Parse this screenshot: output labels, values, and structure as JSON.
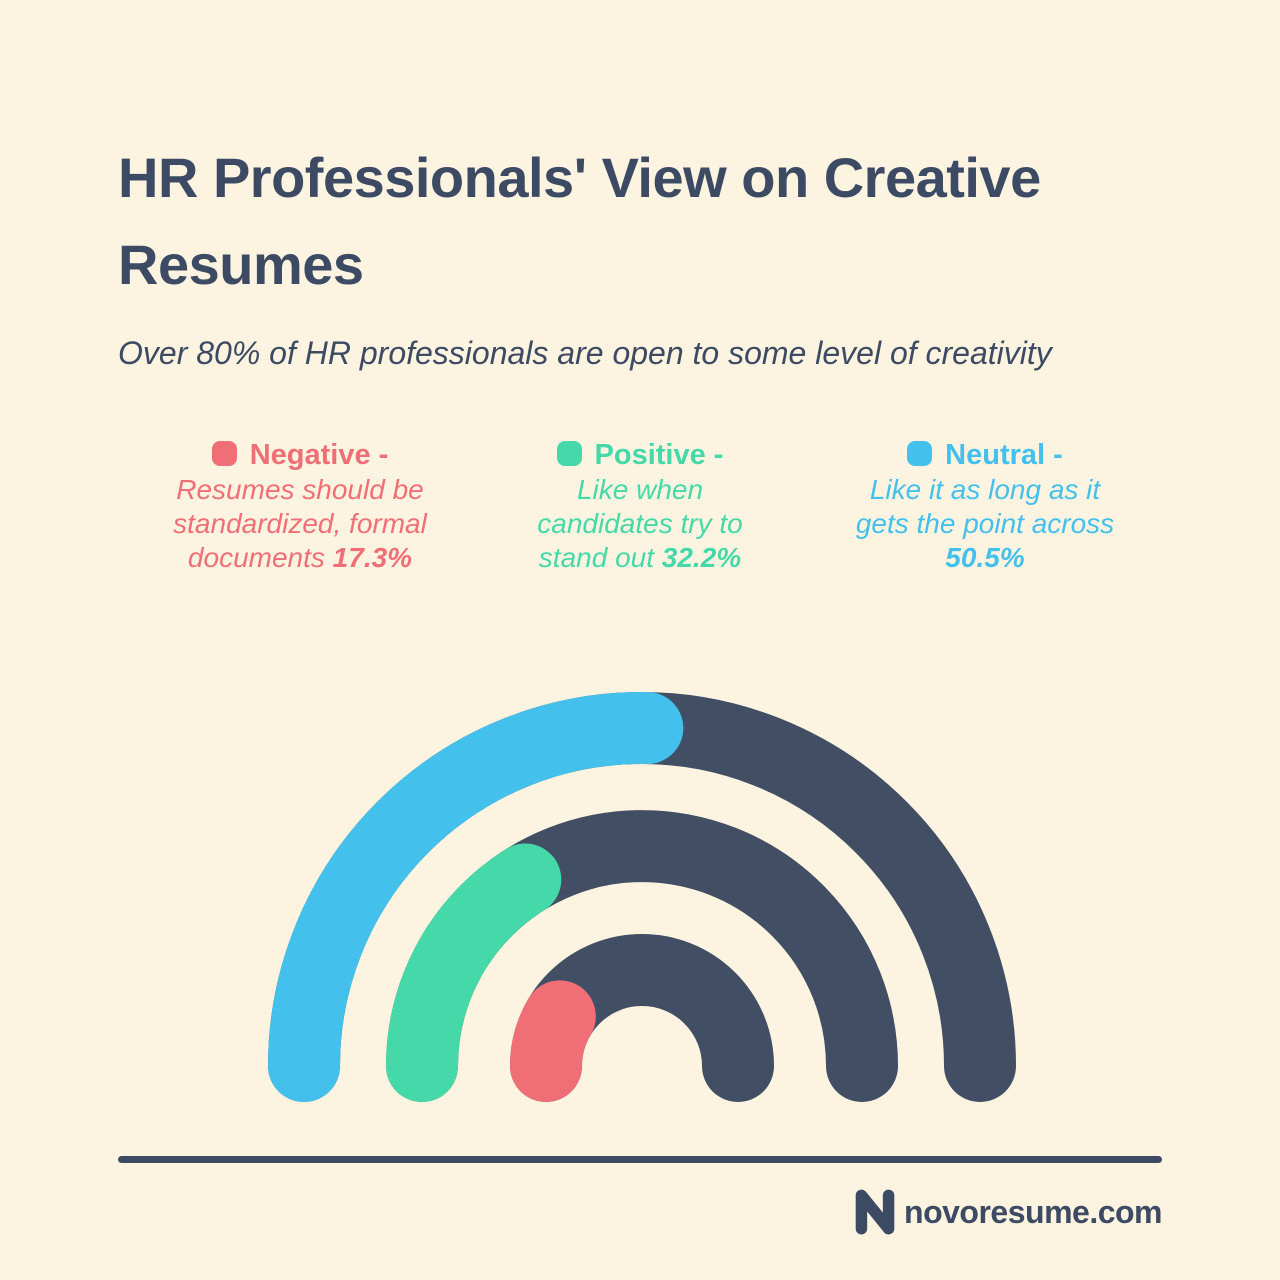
{
  "page": {
    "background_color": "#fcf4e0",
    "text_color": "#3c4a63"
  },
  "header": {
    "title": "HR Professionals' View on Creative Resumes",
    "subtitle": "Over 80% of HR professionals are open to some level of creativity"
  },
  "legend": {
    "separator": "-",
    "items": [
      {
        "label": "Negative",
        "color": "#f06f77",
        "desc_lines": [
          "Resumes should be",
          "standardized, formal",
          "documents"
        ],
        "pct": "17.3%"
      },
      {
        "label": "Positive",
        "color": "#45d9a9",
        "desc_lines": [
          "Like when",
          "candidates try to",
          "stand out"
        ],
        "pct": "32.2%"
      },
      {
        "label": "Neutral",
        "color": "#43c0ec",
        "desc_lines": [
          "Like it as long as it",
          "gets the point across",
          ""
        ],
        "pct": "50.5%"
      }
    ]
  },
  "chart_data": {
    "type": "pie",
    "variant": "semicircle_multi_ring_gauge",
    "title": "HR Professionals' View on Creative Resumes",
    "subtitle": "Over 80% of HR professionals are open to some level of creativity",
    "unit": "%",
    "max": 100,
    "track_color": "#414e64",
    "legend_position": "top",
    "series": [
      {
        "name": "Neutral",
        "value": 50.5,
        "color": "#43c0ec",
        "ring": "outer",
        "description": "Like it as long as it gets the point across"
      },
      {
        "name": "Positive",
        "value": 32.2,
        "color": "#45d9a9",
        "ring": "middle",
        "description": "Like when candidates try to stand out"
      },
      {
        "name": "Negative",
        "value": 17.3,
        "color": "#f06f77",
        "ring": "inner",
        "description": "Resumes should be standardized, formal documents"
      }
    ]
  },
  "footer": {
    "brand": "novoresume.com"
  }
}
